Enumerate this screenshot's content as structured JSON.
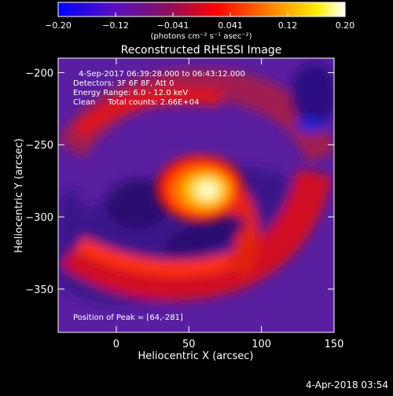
{
  "colorbar": {
    "ticks": [
      "−0.20",
      "−0.12",
      "−0.041",
      "0.041",
      "0.12",
      "0.20"
    ],
    "range": [
      -0.2,
      0.2
    ],
    "units_html": "(photons cm⁻² s⁻¹ asec⁻²)"
  },
  "chart_data": {
    "type": "heatmap",
    "title": "Reconstructed RHESSI Image",
    "xlabel": "Heliocentric X (arcsec)",
    "ylabel": "Heliocentric Y (arcsec)",
    "xlim": [
      -40,
      150
    ],
    "ylim": [
      -380,
      -190
    ],
    "x_ticks": [
      0,
      50,
      100,
      150
    ],
    "x_tick_labels": [
      "0",
      "50",
      "100",
      "150"
    ],
    "y_ticks": [
      -200,
      -250,
      -300,
      -350
    ],
    "y_tick_labels": [
      "−200",
      "−250",
      "−300",
      "−350"
    ],
    "annotations": [
      "4-Sep-2017 06:39:28.000 to 06:43:12.000",
      "Detectors: 3F 6F 8F, Att 0",
      "Energy Range: 6.0 - 12.0 keV",
      "Clean     Total counts: 2.66E+04"
    ],
    "peak_label": "Position of Peak = [64,-281]",
    "peak": [
      64,
      -281
    ],
    "peak_value": 0.2,
    "min_value": -0.2,
    "colormap": [
      "#0000ff",
      "#6a0dad",
      "#ff0000",
      "#ffa500",
      "#ffff00",
      "#ffffff"
    ]
  },
  "footer": {
    "timestamp": "4-Apr-2018 03:54"
  }
}
